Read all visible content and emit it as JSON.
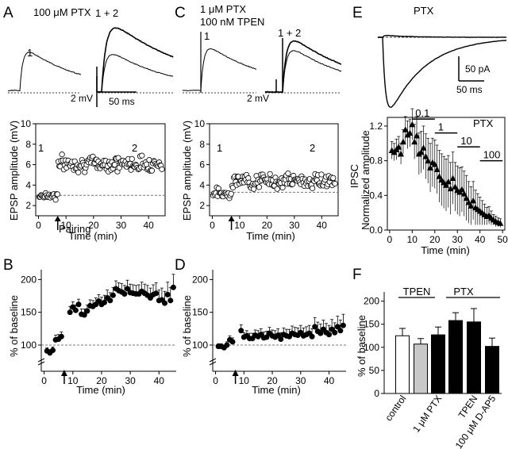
{
  "panel_A": {
    "letter": "A",
    "condition": "100 μM PTX",
    "trace_label_1": "1",
    "trace_label_12": "1 + 2",
    "scale_mv": "2 mV",
    "scale_ms": "50 ms",
    "epoch_label_1": "1",
    "epoch_label_2": "2",
    "arrow_label": "Pairing"
  },
  "panel_C": {
    "letter": "C",
    "condition_line1": "1 μM PTX",
    "condition_line2": "100 nM TPEN",
    "trace_label_1": "1",
    "trace_label_12": "1 + 2",
    "scale_mv": "2 mV",
    "epoch_label_1": "1",
    "epoch_label_2": "2"
  },
  "panel_E": {
    "letter": "E",
    "condition": "PTX",
    "scale_pa": "50 pA",
    "scale_ms": "50 ms",
    "inset_label": "PTX",
    "conc_labels": [
      "0.1",
      "1",
      "10",
      "100"
    ]
  },
  "panel_B": {
    "letter": "B"
  },
  "panel_D": {
    "letter": "D"
  },
  "panel_F": {
    "letter": "F",
    "group_TPEN": "TPEN",
    "group_PTX": "PTX"
  },
  "chart_data": [
    {
      "panel": "A",
      "type": "scatter",
      "xlabel": "Time (min)",
      "ylabel": "EPSP amplitude (mV)",
      "xlim": [
        -1,
        46
      ],
      "ylim": [
        1,
        10
      ],
      "xticks": [
        "0",
        "10",
        "20",
        "30",
        "40"
      ],
      "yticks": [
        "2",
        "4",
        "6",
        "8",
        "10"
      ],
      "baseline": 3,
      "pairing_time": 7,
      "note": "individual EPSP amplitudes, open circles; ~3/min",
      "points": []
    },
    {
      "panel": "C",
      "type": "scatter",
      "xlabel": "Time (min)",
      "ylabel": "EPSP amplitude (mV)",
      "xlim": [
        -1,
        46
      ],
      "ylim": [
        1,
        10
      ],
      "xticks": [
        "0",
        "10",
        "20",
        "30",
        "40"
      ],
      "yticks": [
        "2",
        "4",
        "6",
        "8",
        "10"
      ],
      "baseline": 3.3,
      "pairing_time": 7,
      "points": []
    },
    {
      "panel": "B",
      "type": "scatter",
      "xlabel": "Time (min)",
      "ylabel": "% of baseline",
      "xlim": [
        -1,
        46
      ],
      "ylim": [
        0,
        220
      ],
      "xticks": [
        "0",
        "10",
        "20",
        "30",
        "40"
      ],
      "yticks": [
        "100",
        "150",
        "200"
      ],
      "baseline": 100,
      "pairing_time": 7,
      "x": [
        1,
        2,
        3,
        4,
        5,
        6,
        9,
        10,
        11,
        12,
        13,
        14,
        15,
        16,
        17,
        18,
        19,
        20,
        21,
        22,
        23,
        24,
        25,
        26,
        27,
        28,
        29,
        30,
        31,
        32,
        33,
        34,
        35,
        36,
        37,
        38,
        39,
        40,
        41,
        42,
        43,
        44,
        45
      ],
      "y": [
        91,
        88,
        92,
        108,
        109,
        113,
        150,
        158,
        153,
        162,
        147,
        146,
        152,
        160,
        159,
        162,
        167,
        162,
        165,
        172,
        168,
        176,
        186,
        183,
        181,
        178,
        186,
        180,
        179,
        178,
        178,
        182,
        179,
        176,
        172,
        177,
        179,
        168,
        169,
        164,
        177,
        168,
        188
      ],
      "err": [
        5,
        5,
        5,
        7,
        7,
        7,
        9,
        8,
        8,
        8,
        8,
        9,
        9,
        9,
        9,
        10,
        10,
        11,
        11,
        12,
        12,
        12,
        12,
        12,
        13,
        13,
        13,
        13,
        13,
        13,
        14,
        14,
        14,
        15,
        15,
        15,
        16,
        16,
        18,
        18,
        19,
        20,
        20
      ]
    },
    {
      "panel": "D",
      "type": "scatter",
      "xlabel": "Time (min)",
      "ylabel": "% of baseline",
      "xlim": [
        -1,
        46
      ],
      "ylim": [
        0,
        220
      ],
      "xticks": [
        "0",
        "10",
        "20",
        "30",
        "40"
      ],
      "yticks": [
        "100",
        "150",
        "200"
      ],
      "baseline": 100,
      "pairing_time": 7,
      "x": [
        1,
        2,
        3,
        4,
        5,
        6,
        9,
        10,
        11,
        12,
        13,
        14,
        15,
        16,
        17,
        18,
        19,
        20,
        21,
        22,
        23,
        24,
        25,
        26,
        27,
        28,
        29,
        30,
        31,
        32,
        33,
        34,
        35,
        36,
        37,
        38,
        39,
        40,
        41,
        42,
        43,
        44,
        45
      ],
      "y": [
        98,
        98,
        96,
        100,
        108,
        105,
        122,
        112,
        114,
        110,
        110,
        115,
        113,
        116,
        111,
        112,
        118,
        114,
        112,
        115,
        109,
        116,
        114,
        113,
        118,
        116,
        115,
        119,
        114,
        116,
        118,
        113,
        128,
        121,
        118,
        124,
        119,
        116,
        124,
        119,
        128,
        122,
        130
      ],
      "err": [
        4,
        4,
        4,
        5,
        6,
        6,
        9,
        7,
        8,
        8,
        8,
        8,
        9,
        9,
        9,
        9,
        9,
        9,
        10,
        10,
        10,
        10,
        10,
        11,
        11,
        11,
        11,
        11,
        12,
        12,
        12,
        12,
        14,
        14,
        14,
        14,
        14,
        14,
        15,
        15,
        16,
        16,
        17
      ]
    },
    {
      "panel": "E",
      "type": "scatter",
      "xlabel": "Time (min)",
      "ylabel": "Normalized amplitude",
      "ylabel2": "IPSC",
      "xlim": [
        -1,
        51
      ],
      "ylim": [
        0,
        1.3
      ],
      "xticks": [
        "0",
        "10",
        "20",
        "30",
        "40",
        "50"
      ],
      "yticks": [
        "0.0",
        "0.4",
        "0.8",
        "1.2"
      ],
      "x": [
        1,
        2,
        3,
        4,
        5,
        6,
        7,
        8,
        9,
        10,
        11,
        12,
        13,
        14,
        15,
        16,
        17,
        18,
        19,
        20,
        21,
        22,
        23,
        24,
        25,
        26,
        27,
        28,
        29,
        30,
        31,
        32,
        33,
        34,
        35,
        36,
        37,
        38,
        39,
        40,
        41,
        42,
        43,
        44,
        45,
        46,
        47,
        48,
        49
      ],
      "y": [
        0.92,
        0.9,
        0.93,
        0.96,
        0.88,
        1.02,
        1.16,
        1.1,
        1.12,
        1.22,
        1.02,
        1.09,
        0.88,
        0.9,
        0.95,
        0.85,
        0.8,
        0.72,
        0.78,
        0.76,
        0.7,
        0.62,
        0.58,
        0.55,
        0.52,
        0.56,
        0.48,
        0.6,
        0.5,
        0.46,
        0.44,
        0.47,
        0.42,
        0.37,
        0.32,
        0.28,
        0.34,
        0.26,
        0.24,
        0.22,
        0.2,
        0.18,
        0.16,
        0.17,
        0.14,
        0.12,
        0.1,
        0.09,
        0.08
      ],
      "err": [
        0.1,
        0.1,
        0.12,
        0.12,
        0.12,
        0.14,
        0.15,
        0.16,
        0.16,
        0.18,
        0.2,
        0.22,
        0.24,
        0.24,
        0.25,
        0.26,
        0.26,
        0.28,
        0.28,
        0.28,
        0.28,
        0.3,
        0.3,
        0.3,
        0.3,
        0.3,
        0.3,
        0.3,
        0.28,
        0.28,
        0.28,
        0.26,
        0.26,
        0.26,
        0.24,
        0.22,
        0.22,
        0.2,
        0.18,
        0.16,
        0.14,
        0.12,
        0.1,
        0.1,
        0.08,
        0.06,
        0.06,
        0.05,
        0.05
      ],
      "conc_bars": [
        {
          "label": "0.1",
          "start": 10,
          "end": 20
        },
        {
          "label": "1",
          "start": 20,
          "end": 30
        },
        {
          "label": "10",
          "start": 30,
          "end": 40
        },
        {
          "label": "100",
          "start": 40,
          "end": 50
        }
      ]
    },
    {
      "panel": "F",
      "type": "bar",
      "ylabel": "% of baseline",
      "ylim": [
        0,
        220
      ],
      "yticks": [
        "0",
        "50",
        "100",
        "150",
        "200"
      ],
      "categories": [
        "control",
        "",
        "1 μM PTX",
        "",
        "TPEN",
        "100 μM D-AP5"
      ],
      "values": [
        125,
        107,
        127,
        158,
        155,
        102
      ],
      "err": [
        16,
        12,
        17,
        17,
        29,
        18
      ],
      "colors": [
        "#ffffff",
        "#c8c8c8",
        "#000000",
        "#000000",
        "#000000",
        "#000000"
      ]
    }
  ]
}
